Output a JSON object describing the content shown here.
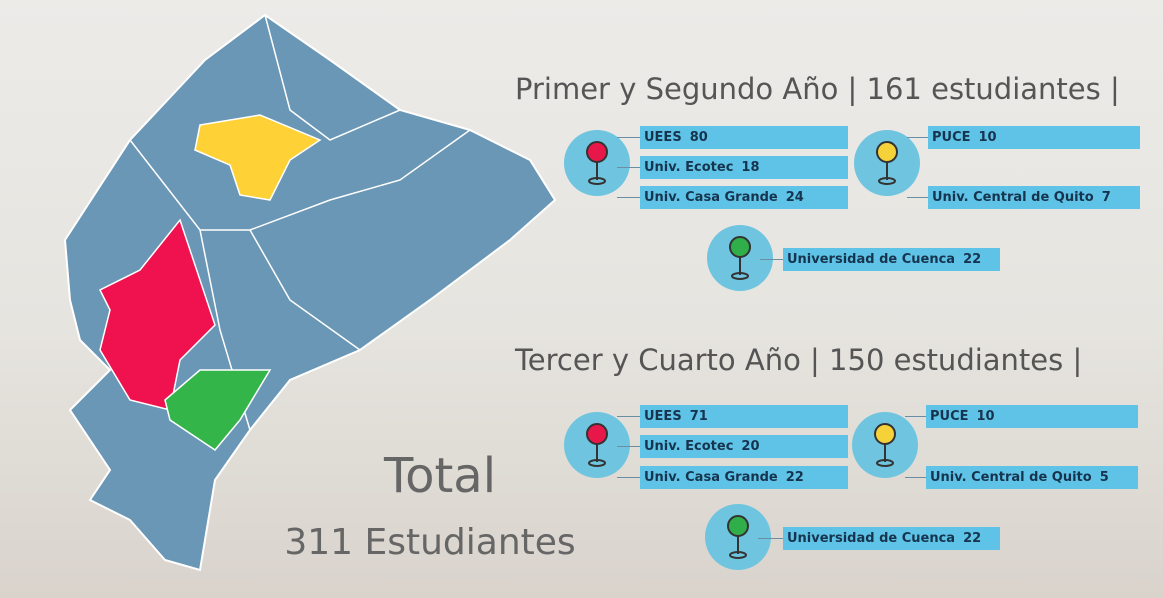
{
  "sections": [
    {
      "title": "Primer y Segundo Año | 161 estudiantes |",
      "groups": [
        {
          "color": "#e8174a",
          "items": [
            {
              "name": "UEES",
              "count": 80
            },
            {
              "name": "Univ. Ecotec",
              "count": 18
            },
            {
              "name": "Univ. Casa Grande",
              "count": 24
            }
          ]
        },
        {
          "color": "#f6d23a",
          "items": [
            {
              "name": "PUCE",
              "count": 10
            },
            {
              "name": "Univ. Central de Quito",
              "count": 7
            }
          ]
        },
        {
          "color": "#2fae4a",
          "items": [
            {
              "name": "Universidad de Cuenca",
              "count": 22
            }
          ]
        }
      ]
    },
    {
      "title": "Tercer y Cuarto Año | 150 estudiantes |",
      "groups": [
        {
          "color": "#e8174a",
          "items": [
            {
              "name": "UEES",
              "count": 71
            },
            {
              "name": "Univ. Ecotec",
              "count": 20
            },
            {
              "name": "Univ. Casa Grande",
              "count": 22
            }
          ]
        },
        {
          "color": "#f6d23a",
          "items": [
            {
              "name": "PUCE",
              "count": 10
            },
            {
              "name": "Univ. Central de Quito",
              "count": 5
            }
          ]
        },
        {
          "color": "#2fae4a",
          "items": [
            {
              "name": "Universidad de Cuenca",
              "count": 22
            }
          ]
        }
      ]
    }
  ],
  "total": {
    "title": "Total",
    "subtitle": "311 Estudiantes"
  }
}
